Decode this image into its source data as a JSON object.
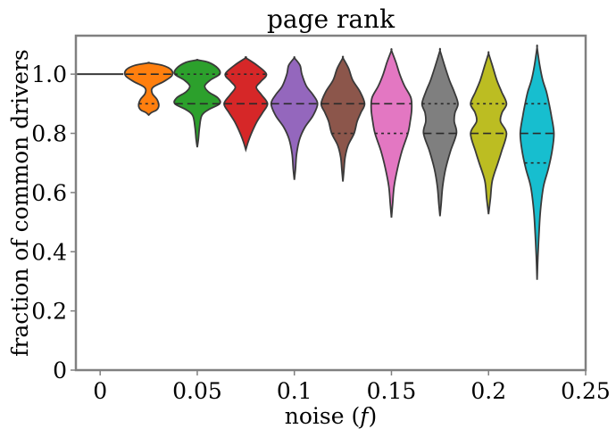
{
  "chart_data": {
    "type": "violin",
    "title": "page rank",
    "xlabel_text": "noise (",
    "xlabel_var": "f",
    "xlabel_close": ")",
    "ylabel": "fraction of common drivers",
    "xlim": [
      -0.0125,
      0.25
    ],
    "ylim": [
      0,
      1.13
    ],
    "xticks": [
      0,
      0.05,
      0.1,
      0.15,
      0.2,
      0.25
    ],
    "xtick_labels": [
      "0",
      "0.05",
      "0.1",
      "0.15",
      "0.2",
      "0.25"
    ],
    "yticks": [
      0,
      0.2,
      0.4,
      0.6,
      0.8,
      1.0
    ],
    "ytick_labels": [
      "0",
      "0.2",
      "0.4",
      "0.6",
      "0.8",
      "1.0"
    ],
    "grid": false,
    "series": [
      {
        "x": 0.0,
        "color": "#1f77b4",
        "profile": [
          [
            1.0,
            0.0
          ],
          [
            1.0,
            0.0
          ]
        ],
        "quartiles": [
          1.0,
          1.0,
          1.0
        ]
      },
      {
        "x": 0.025,
        "color": "#ff7f0e",
        "profile": [
          [
            0.862,
            0.0
          ],
          [
            0.87,
            0.1
          ],
          [
            0.88,
            0.3
          ],
          [
            0.895,
            0.37
          ],
          [
            0.915,
            0.3
          ],
          [
            0.935,
            0.13
          ],
          [
            0.955,
            0.15
          ],
          [
            0.975,
            0.55
          ],
          [
            0.995,
            0.85
          ],
          [
            1.015,
            0.82
          ],
          [
            1.03,
            0.5
          ],
          [
            1.038,
            0.0
          ]
        ],
        "quartiles": [
          0.9,
          1.0,
          1.0
        ]
      },
      {
        "x": 0.05,
        "color": "#2ca02c",
        "profile": [
          [
            0.753,
            0.0
          ],
          [
            0.78,
            0.03
          ],
          [
            0.82,
            0.06
          ],
          [
            0.86,
            0.12
          ],
          [
            0.88,
            0.3
          ],
          [
            0.9,
            0.6
          ],
          [
            0.92,
            0.55
          ],
          [
            0.94,
            0.3
          ],
          [
            0.96,
            0.2
          ],
          [
            0.98,
            0.35
          ],
          [
            1.0,
            0.6
          ],
          [
            1.02,
            0.55
          ],
          [
            1.04,
            0.3
          ],
          [
            1.048,
            0.0
          ]
        ],
        "quartiles": [
          0.9,
          0.9,
          1.0
        ]
      },
      {
        "x": 0.075,
        "color": "#d62728",
        "profile": [
          [
            0.745,
            0.0
          ],
          [
            0.77,
            0.06
          ],
          [
            0.8,
            0.15
          ],
          [
            0.84,
            0.3
          ],
          [
            0.87,
            0.45
          ],
          [
            0.9,
            0.58
          ],
          [
            0.93,
            0.42
          ],
          [
            0.955,
            0.28
          ],
          [
            0.975,
            0.4
          ],
          [
            1.0,
            0.55
          ],
          [
            1.03,
            0.3
          ],
          [
            1.055,
            0.0
          ]
        ],
        "quartiles": [
          0.9,
          0.9,
          1.0
        ]
      },
      {
        "x": 0.1,
        "color": "#9467bd",
        "profile": [
          [
            0.643,
            0.0
          ],
          [
            0.68,
            0.03
          ],
          [
            0.73,
            0.06
          ],
          [
            0.78,
            0.14
          ],
          [
            0.82,
            0.28
          ],
          [
            0.86,
            0.5
          ],
          [
            0.9,
            0.62
          ],
          [
            0.93,
            0.5
          ],
          [
            0.96,
            0.32
          ],
          [
            1.0,
            0.2
          ],
          [
            1.03,
            0.15
          ],
          [
            1.055,
            0.0
          ]
        ],
        "quartiles": [
          0.9,
          0.9,
          0.9
        ]
      },
      {
        "x": 0.125,
        "color": "#8c564b",
        "profile": [
          [
            0.637,
            0.0
          ],
          [
            0.68,
            0.03
          ],
          [
            0.72,
            0.06
          ],
          [
            0.76,
            0.14
          ],
          [
            0.8,
            0.3
          ],
          [
            0.84,
            0.38
          ],
          [
            0.87,
            0.48
          ],
          [
            0.9,
            0.58
          ],
          [
            0.94,
            0.46
          ],
          [
            0.98,
            0.26
          ],
          [
            1.02,
            0.15
          ],
          [
            1.055,
            0.0
          ]
        ],
        "quartiles": [
          0.8,
          0.9,
          0.9
        ]
      },
      {
        "x": 0.15,
        "color": "#e377c2",
        "profile": [
          [
            0.515,
            0.0
          ],
          [
            0.56,
            0.03
          ],
          [
            0.62,
            0.07
          ],
          [
            0.68,
            0.16
          ],
          [
            0.74,
            0.28
          ],
          [
            0.8,
            0.44
          ],
          [
            0.84,
            0.5
          ],
          [
            0.88,
            0.54
          ],
          [
            0.92,
            0.52
          ],
          [
            0.96,
            0.35
          ],
          [
            1.0,
            0.22
          ],
          [
            1.04,
            0.12
          ],
          [
            1.08,
            0.0
          ]
        ],
        "quartiles": [
          0.8,
          0.9,
          0.9
        ]
      },
      {
        "x": 0.175,
        "color": "#7f7f7f",
        "profile": [
          [
            0.52,
            0.0
          ],
          [
            0.56,
            0.03
          ],
          [
            0.62,
            0.07
          ],
          [
            0.68,
            0.15
          ],
          [
            0.74,
            0.28
          ],
          [
            0.8,
            0.44
          ],
          [
            0.84,
            0.38
          ],
          [
            0.87,
            0.4
          ],
          [
            0.9,
            0.48
          ],
          [
            0.94,
            0.38
          ],
          [
            0.98,
            0.25
          ],
          [
            1.03,
            0.12
          ],
          [
            1.08,
            0.0
          ]
        ],
        "quartiles": [
          0.8,
          0.8,
          0.9
        ]
      },
      {
        "x": 0.2,
        "color": "#bcbd22",
        "profile": [
          [
            0.527,
            0.0
          ],
          [
            0.58,
            0.05
          ],
          [
            0.64,
            0.1
          ],
          [
            0.7,
            0.25
          ],
          [
            0.74,
            0.35
          ],
          [
            0.8,
            0.48
          ],
          [
            0.84,
            0.32
          ],
          [
            0.87,
            0.36
          ],
          [
            0.9,
            0.48
          ],
          [
            0.94,
            0.35
          ],
          [
            0.98,
            0.22
          ],
          [
            1.03,
            0.1
          ],
          [
            1.07,
            0.0
          ]
        ],
        "quartiles": [
          0.8,
          0.8,
          0.9
        ]
      },
      {
        "x": 0.225,
        "color": "#17becf",
        "profile": [
          [
            0.305,
            0.0
          ],
          [
            0.38,
            0.02
          ],
          [
            0.46,
            0.05
          ],
          [
            0.54,
            0.09
          ],
          [
            0.62,
            0.17
          ],
          [
            0.68,
            0.3
          ],
          [
            0.74,
            0.4
          ],
          [
            0.8,
            0.45
          ],
          [
            0.86,
            0.38
          ],
          [
            0.9,
            0.32
          ],
          [
            0.94,
            0.25
          ],
          [
            0.98,
            0.15
          ],
          [
            1.03,
            0.07
          ],
          [
            1.09,
            0.0
          ]
        ],
        "quartiles": [
          0.7,
          0.8,
          0.9
        ]
      }
    ]
  }
}
